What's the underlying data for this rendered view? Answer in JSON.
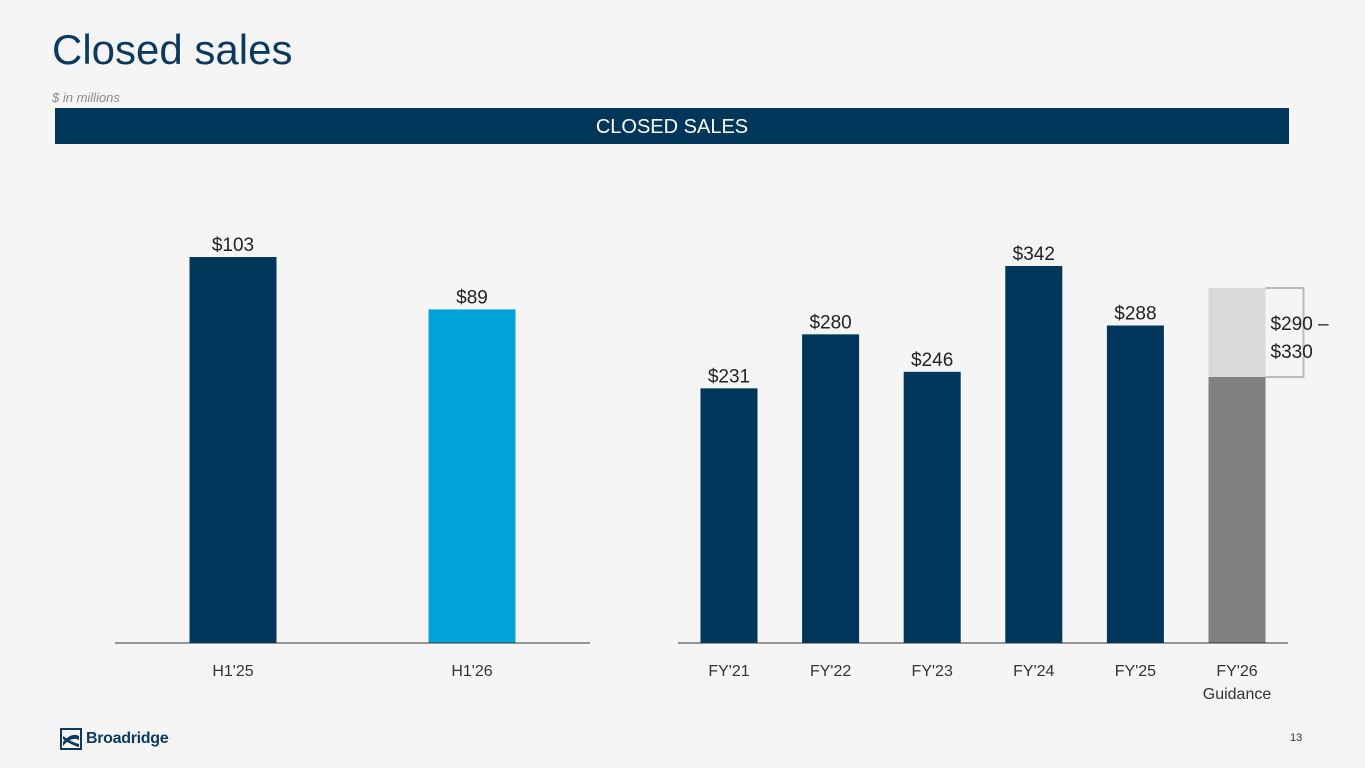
{
  "page": {
    "title": "Closed sales",
    "subtitle": "$ in millions",
    "banner": "CLOSED SALES",
    "page_number": "13",
    "logo_text": "Broadridge",
    "logo_mark": "·"
  },
  "colors": {
    "dark_navy": "#00365a",
    "light_blue": "#00a3d7",
    "gray": "#808080",
    "light_gray": "#d9d9d9"
  },
  "chart_data": [
    {
      "type": "bar",
      "categories": [
        "H1'25",
        "H1'26"
      ],
      "values": [
        103,
        89
      ],
      "data_labels": [
        "$103",
        "$89"
      ],
      "colors": [
        "#00365a",
        "#00a3d7"
      ],
      "ylim": [
        0,
        103
      ]
    },
    {
      "type": "bar",
      "categories": [
        "FY'21",
        "FY'22",
        "FY'23",
        "FY'24",
        "FY'25",
        "FY'26\nGuidance"
      ],
      "values": [
        231,
        280,
        246,
        342,
        288,
        290
      ],
      "data_labels": [
        "$231",
        "$280",
        "$246",
        "$342",
        "$288",
        ""
      ],
      "colors": [
        "#00365a",
        "#00365a",
        "#00365a",
        "#00365a",
        "#00365a",
        "#808080"
      ],
      "guidance_range": [
        290,
        330
      ],
      "guidance_label": [
        "$290 –",
        "$330"
      ],
      "range_color": "#d9d9d9",
      "ylim": [
        0,
        342
      ]
    }
  ]
}
